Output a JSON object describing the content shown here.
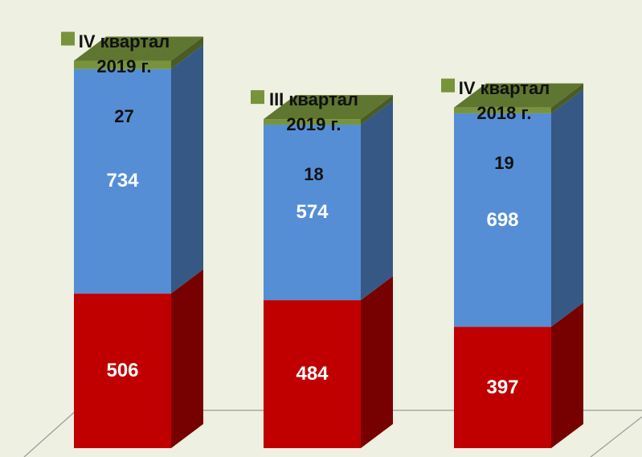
{
  "chart_data": {
    "type": "bar3d_stacked",
    "categories": [
      "IV квартал 2019 г.",
      "III квартал 2019 г.",
      "IV квартал 2018 г."
    ],
    "series": [
      {
        "color": "#c00000",
        "values": [
          506,
          484,
          397
        ]
      },
      {
        "color": "#558ed5",
        "values": [
          734,
          574,
          698
        ]
      },
      {
        "color": "#77933c",
        "values": [
          27,
          18,
          19
        ]
      }
    ],
    "ylim": [
      0,
      1300
    ]
  }
}
